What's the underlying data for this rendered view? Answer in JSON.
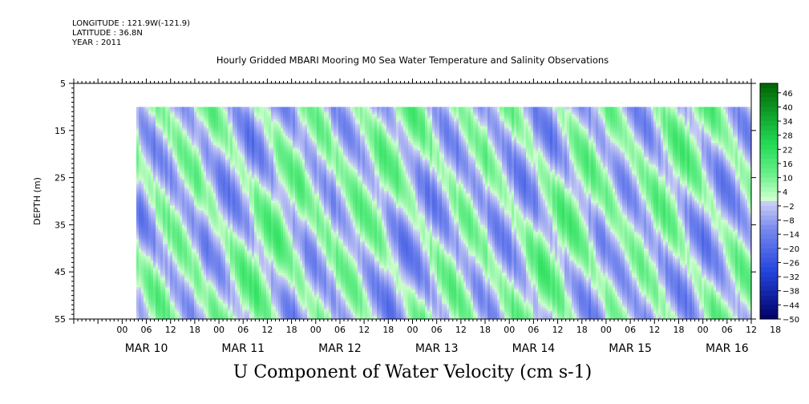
{
  "header": {
    "longitude": "LONGITUDE : 121.9W(-121.9)",
    "latitude": "LATITUDE : 36.8N",
    "year": "YEAR : 2011"
  },
  "chart_data": {
    "type": "heatmap",
    "title": "Hourly Gridded MBARI Mooring M0 Sea Water Temperature and Salinity Observations",
    "variable_label": "U Component of Water Velocity (cm s-1)",
    "ylabel": "DEPTH (m)",
    "y_ticks": [
      5,
      15,
      25,
      35,
      45,
      55
    ],
    "ylim": [
      5,
      55
    ],
    "y_reversed": true,
    "data_depth_range": [
      10,
      55
    ],
    "x_hour_ticks": [
      "00",
      "06",
      "12",
      "18",
      "00",
      "06",
      "12",
      "18",
      "00",
      "06",
      "12",
      "18",
      "00",
      "06",
      "12",
      "18",
      "00",
      "06",
      "12",
      "18",
      "00",
      "06",
      "12",
      "18",
      "00",
      "06",
      "12",
      "18"
    ],
    "x_days": [
      "MAR 10",
      "MAR 11",
      "MAR 12",
      "MAR 13",
      "MAR 14",
      "MAR 15",
      "MAR 16"
    ],
    "x_range_hours": [
      -12,
      156
    ],
    "data_time_range_hours": [
      3.5,
      156
    ],
    "colorbar_ticks": [
      "46",
      "40",
      "34",
      "28",
      "22",
      "16",
      "10",
      "4",
      "-2",
      "-8",
      "-14",
      "-20",
      "-26",
      "-32",
      "-38",
      "-44",
      "-50"
    ],
    "colorbar_range": [
      -50,
      50
    ],
    "colors": {
      "positive_high": "#006400",
      "positive_mid": "#22dd55",
      "near_zero": "#ccffcc",
      "negative_mid": "#7788ee",
      "negative_high": "#000066"
    }
  }
}
